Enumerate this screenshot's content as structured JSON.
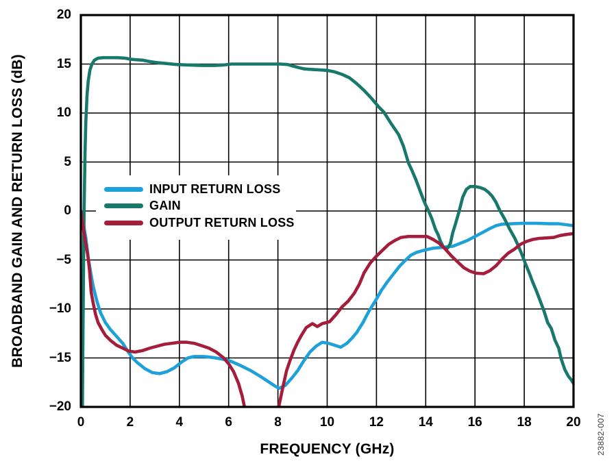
{
  "figure": {
    "watermark": "23882-007"
  },
  "chart_data": {
    "type": "line",
    "title": "",
    "xlabel": "FREQUENCY (GHz)",
    "ylabel": "BROADBAND GAIN AND RETURN LOSS (dB)",
    "xlim": [
      0,
      20
    ],
    "ylim": [
      -20,
      20
    ],
    "x_ticks": [
      0,
      2,
      4,
      6,
      8,
      10,
      12,
      14,
      16,
      18,
      20
    ],
    "y_ticks": [
      20,
      15,
      10,
      5,
      0,
      -5,
      -10,
      -15,
      -20
    ],
    "y_tick_labels": [
      "20",
      "15",
      "10",
      "5",
      "0",
      "−5",
      "−10",
      "−15",
      "−20"
    ],
    "grid": true,
    "grid_color": "#000000",
    "legend_position": "inside-left-middle",
    "series": [
      {
        "name": "INPUT RETURN LOSS",
        "color": "#1EA0D9",
        "points": [
          [
            0,
            0
          ],
          [
            0.1,
            -1.3
          ],
          [
            0.2,
            -2.7
          ],
          [
            0.3,
            -4.8
          ],
          [
            0.4,
            -6.3
          ],
          [
            0.5,
            -7.7
          ],
          [
            0.65,
            -9.2
          ],
          [
            0.8,
            -10.4
          ],
          [
            1.0,
            -11.4
          ],
          [
            1.2,
            -12.1
          ],
          [
            1.45,
            -12.8
          ],
          [
            1.7,
            -13.5
          ],
          [
            1.9,
            -14.3
          ],
          [
            2.1,
            -15.0
          ],
          [
            2.3,
            -15.5
          ],
          [
            2.6,
            -16.1
          ],
          [
            2.9,
            -16.5
          ],
          [
            3.2,
            -16.6
          ],
          [
            3.5,
            -16.4
          ],
          [
            3.8,
            -16.0
          ],
          [
            4.1,
            -15.4
          ],
          [
            4.35,
            -15.0
          ],
          [
            4.6,
            -14.85
          ],
          [
            5.0,
            -14.85
          ],
          [
            5.35,
            -14.95
          ],
          [
            5.7,
            -15.1
          ],
          [
            6.1,
            -15.35
          ],
          [
            6.5,
            -15.8
          ],
          [
            6.9,
            -16.3
          ],
          [
            7.3,
            -16.9
          ],
          [
            7.6,
            -17.4
          ],
          [
            7.9,
            -17.9
          ],
          [
            8.05,
            -18.1
          ],
          [
            8.3,
            -17.8
          ],
          [
            8.55,
            -17.1
          ],
          [
            8.8,
            -16.3
          ],
          [
            9.05,
            -15.3
          ],
          [
            9.3,
            -14.4
          ],
          [
            9.55,
            -13.8
          ],
          [
            9.8,
            -13.4
          ],
          [
            10.05,
            -13.5
          ],
          [
            10.3,
            -13.7
          ],
          [
            10.55,
            -13.9
          ],
          [
            10.8,
            -13.5
          ],
          [
            11.0,
            -13.0
          ],
          [
            11.2,
            -12.4
          ],
          [
            11.45,
            -11.4
          ],
          [
            11.7,
            -10.2
          ],
          [
            11.95,
            -9.2
          ],
          [
            12.2,
            -8.1
          ],
          [
            12.45,
            -7.2
          ],
          [
            12.7,
            -6.4
          ],
          [
            12.95,
            -5.6
          ],
          [
            13.15,
            -5.1
          ],
          [
            13.4,
            -4.5
          ],
          [
            13.65,
            -4.2
          ],
          [
            13.95,
            -4.0
          ],
          [
            14.3,
            -3.8
          ],
          [
            14.7,
            -3.7
          ],
          [
            15.1,
            -3.6
          ],
          [
            15.4,
            -3.3
          ],
          [
            15.7,
            -3.0
          ],
          [
            16.0,
            -2.6
          ],
          [
            16.3,
            -2.2
          ],
          [
            16.6,
            -1.8
          ],
          [
            16.85,
            -1.5
          ],
          [
            17.1,
            -1.35
          ],
          [
            17.5,
            -1.3
          ],
          [
            18.0,
            -1.25
          ],
          [
            18.5,
            -1.25
          ],
          [
            19.0,
            -1.3
          ],
          [
            19.4,
            -1.3
          ],
          [
            19.7,
            -1.4
          ],
          [
            20.0,
            -1.5
          ]
        ]
      },
      {
        "name": "GAIN",
        "color": "#17786B",
        "points": [
          [
            0.06,
            -20.6
          ],
          [
            0.08,
            -14
          ],
          [
            0.1,
            -8
          ],
          [
            0.13,
            0
          ],
          [
            0.17,
            6
          ],
          [
            0.2,
            9
          ],
          [
            0.25,
            11.8
          ],
          [
            0.3,
            13.3
          ],
          [
            0.37,
            14.4
          ],
          [
            0.45,
            15.0
          ],
          [
            0.55,
            15.4
          ],
          [
            0.7,
            15.6
          ],
          [
            0.9,
            15.65
          ],
          [
            1.2,
            15.65
          ],
          [
            1.5,
            15.65
          ],
          [
            1.8,
            15.6
          ],
          [
            2.0,
            15.5
          ],
          [
            2.2,
            15.45
          ],
          [
            2.5,
            15.4
          ],
          [
            2.8,
            15.25
          ],
          [
            3.1,
            15.15
          ],
          [
            3.5,
            15.05
          ],
          [
            3.9,
            14.95
          ],
          [
            4.4,
            14.9
          ],
          [
            4.9,
            14.85
          ],
          [
            5.4,
            14.85
          ],
          [
            5.8,
            14.9
          ],
          [
            6.1,
            15.0
          ],
          [
            6.8,
            15.0
          ],
          [
            7.5,
            15.0
          ],
          [
            8.1,
            15.0
          ],
          [
            8.4,
            14.95
          ],
          [
            8.6,
            14.8
          ],
          [
            8.9,
            14.6
          ],
          [
            9.1,
            14.5
          ],
          [
            9.4,
            14.45
          ],
          [
            9.7,
            14.4
          ],
          [
            10.0,
            14.35
          ],
          [
            10.3,
            14.2
          ],
          [
            10.6,
            13.95
          ],
          [
            10.9,
            13.6
          ],
          [
            11.2,
            13.0
          ],
          [
            11.5,
            12.3
          ],
          [
            11.8,
            11.5
          ],
          [
            12.1,
            10.6
          ],
          [
            12.3,
            10.1
          ],
          [
            12.6,
            8.9
          ],
          [
            12.9,
            7.8
          ],
          [
            13.1,
            6.6
          ],
          [
            13.3,
            4.9
          ],
          [
            13.45,
            4.1
          ],
          [
            13.6,
            3.2
          ],
          [
            13.75,
            2.2
          ],
          [
            13.9,
            1.2
          ],
          [
            14.0,
            0.6
          ],
          [
            14.1,
            0.1
          ],
          [
            14.25,
            -0.8
          ],
          [
            14.4,
            -1.9
          ],
          [
            14.5,
            -2.4
          ],
          [
            14.6,
            -3.1
          ],
          [
            14.7,
            -3.6
          ],
          [
            14.8,
            -3.85
          ],
          [
            14.9,
            -3.75
          ],
          [
            15.0,
            -3.3
          ],
          [
            15.1,
            -2.2
          ],
          [
            15.2,
            -1.4
          ],
          [
            15.35,
            -0.1
          ],
          [
            15.5,
            1.4
          ],
          [
            15.65,
            2.2
          ],
          [
            15.8,
            2.5
          ],
          [
            16.0,
            2.5
          ],
          [
            16.2,
            2.4
          ],
          [
            16.4,
            2.2
          ],
          [
            16.55,
            1.9
          ],
          [
            16.7,
            1.5
          ],
          [
            16.85,
            0.9
          ],
          [
            17.0,
            0.1
          ],
          [
            17.2,
            -0.8
          ],
          [
            17.4,
            -1.8
          ],
          [
            17.6,
            -2.7
          ],
          [
            17.75,
            -3.5
          ],
          [
            17.9,
            -4.4
          ],
          [
            18.05,
            -5.4
          ],
          [
            18.2,
            -6.3
          ],
          [
            18.35,
            -7.3
          ],
          [
            18.5,
            -8.2
          ],
          [
            18.65,
            -9.2
          ],
          [
            18.8,
            -10.2
          ],
          [
            18.95,
            -11.4
          ],
          [
            19.1,
            -12.0
          ],
          [
            19.25,
            -13.2
          ],
          [
            19.4,
            -14.0
          ],
          [
            19.5,
            -15.1
          ],
          [
            19.65,
            -16.2
          ],
          [
            19.8,
            -16.9
          ],
          [
            19.9,
            -17.2
          ],
          [
            20.0,
            -17.6
          ]
        ]
      },
      {
        "name": "OUTPUT RETURN LOSS",
        "color": "#A41E3C",
        "points": [
          [
            0,
            0
          ],
          [
            0.1,
            -1.8
          ],
          [
            0.2,
            -3.3
          ],
          [
            0.28,
            -4.5
          ],
          [
            0.35,
            -6.0
          ],
          [
            0.42,
            -8.3
          ],
          [
            0.5,
            -9.4
          ],
          [
            0.6,
            -10.6
          ],
          [
            0.7,
            -11.4
          ],
          [
            0.85,
            -12.1
          ],
          [
            1.0,
            -12.7
          ],
          [
            1.2,
            -13.2
          ],
          [
            1.45,
            -13.7
          ],
          [
            1.7,
            -14.0
          ],
          [
            1.95,
            -14.3
          ],
          [
            2.2,
            -14.4
          ],
          [
            2.5,
            -14.25
          ],
          [
            2.8,
            -14.0
          ],
          [
            3.1,
            -13.8
          ],
          [
            3.4,
            -13.6
          ],
          [
            3.7,
            -13.5
          ],
          [
            4.0,
            -13.4
          ],
          [
            4.3,
            -13.4
          ],
          [
            4.6,
            -13.5
          ],
          [
            4.9,
            -13.75
          ],
          [
            5.2,
            -14.0
          ],
          [
            5.5,
            -14.4
          ],
          [
            5.8,
            -15.0
          ],
          [
            6.0,
            -15.6
          ],
          [
            6.2,
            -16.4
          ],
          [
            6.4,
            -17.6
          ],
          [
            6.55,
            -18.9
          ],
          [
            6.7,
            -20.7
          ],
          [
            7.9,
            -20.7
          ],
          [
            8.05,
            -19.8
          ],
          [
            8.2,
            -18.0
          ],
          [
            8.35,
            -16.3
          ],
          [
            8.5,
            -15.2
          ],
          [
            8.65,
            -14.2
          ],
          [
            8.8,
            -13.4
          ],
          [
            8.95,
            -12.7
          ],
          [
            9.15,
            -11.9
          ],
          [
            9.4,
            -11.5
          ],
          [
            9.6,
            -11.8
          ],
          [
            9.8,
            -11.5
          ],
          [
            10.1,
            -11.3
          ],
          [
            10.35,
            -10.6
          ],
          [
            10.6,
            -9.8
          ],
          [
            10.85,
            -9.2
          ],
          [
            11.1,
            -8.4
          ],
          [
            11.3,
            -7.5
          ],
          [
            11.5,
            -6.3
          ],
          [
            11.75,
            -5.3
          ],
          [
            12.0,
            -4.6
          ],
          [
            12.25,
            -4.0
          ],
          [
            12.5,
            -3.4
          ],
          [
            12.75,
            -3.0
          ],
          [
            13.0,
            -2.7
          ],
          [
            13.3,
            -2.6
          ],
          [
            13.7,
            -2.6
          ],
          [
            14.05,
            -2.6
          ],
          [
            14.3,
            -2.9
          ],
          [
            14.55,
            -3.3
          ],
          [
            14.8,
            -3.9
          ],
          [
            15.05,
            -4.6
          ],
          [
            15.3,
            -5.2
          ],
          [
            15.55,
            -5.8
          ],
          [
            15.8,
            -6.15
          ],
          [
            16.05,
            -6.35
          ],
          [
            16.35,
            -6.4
          ],
          [
            16.6,
            -6.1
          ],
          [
            16.85,
            -5.6
          ],
          [
            17.1,
            -4.9
          ],
          [
            17.35,
            -4.3
          ],
          [
            17.6,
            -3.9
          ],
          [
            17.85,
            -3.4
          ],
          [
            18.1,
            -3.1
          ],
          [
            18.35,
            -2.9
          ],
          [
            18.6,
            -2.8
          ],
          [
            18.9,
            -2.75
          ],
          [
            19.2,
            -2.7
          ],
          [
            19.45,
            -2.5
          ],
          [
            19.7,
            -2.4
          ],
          [
            20.0,
            -2.3
          ]
        ]
      }
    ]
  }
}
